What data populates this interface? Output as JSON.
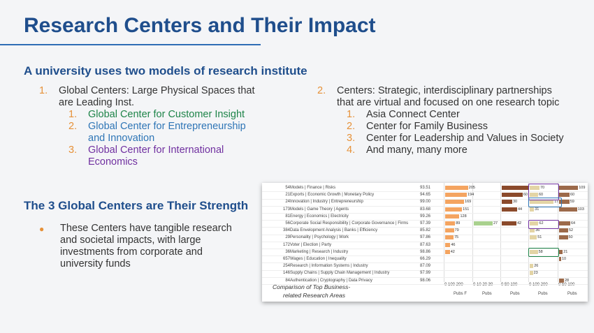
{
  "title": "Research Centers and Their Impact",
  "section1": {
    "heading": "A university uses two models of research institute",
    "left_item": {
      "num": "1.",
      "text_line1": "Global Centers: Large Physical Spaces that",
      "text_line2": "are Leading Inst.",
      "sub": [
        {
          "num": "1.",
          "line1": "Global Center for Customer Insight",
          "line2": ""
        },
        {
          "num": "2.",
          "line1": "Global Center for Entrepreneurship",
          "line2": "and Innovation"
        },
        {
          "num": "3.",
          "line1": "Global Center for International",
          "line2": "Economics"
        }
      ]
    },
    "right_item": {
      "num": "2.",
      "text_line1": "Centers: Strategic, interdisciplinary partnerships",
      "text_line2": "that are virtual and focused on one research topic",
      "sub": [
        {
          "num": "1.",
          "text": "Asia Connect Center"
        },
        {
          "num": "2.",
          "text": "Center for Family Business"
        },
        {
          "num": "3.",
          "text": "Center for Leadership and Values in Society"
        },
        {
          "num": "4.",
          "text": "And many, many more"
        }
      ]
    }
  },
  "section2": {
    "heading": "The 3 Global Centers are Their Strength",
    "bullet_line1": "These Centers have tangible research",
    "bullet_line2": "and societal impacts, with large",
    "bullet_line3": "investments from corporate and",
    "bullet_line4": "university funds"
  },
  "table": {
    "caption_line1": "Comparison of Top Business-",
    "caption_line2": "related Research Areas",
    "axis_labels": [
      "0  100  200",
      "0  10  20  30",
      "0    50   100",
      "0   100  200",
      "0    50   100"
    ],
    "pubs_labels": [
      "Pubs F",
      "Pubs",
      "Pubs",
      "Pubs",
      "Pubs"
    ],
    "colors": {
      "c1": "#f4a460",
      "c2": "#a9d18e",
      "c3": "#8b4a2b",
      "c4": "#e3d4a5",
      "c5": "#9c6a4a",
      "purple": "#7030a0",
      "blue": "#2e75b6",
      "green": "#1e8449"
    },
    "rows": [
      {
        "id": "54",
        "topic": "Models | Finance | Risks",
        "score": "93.51",
        "v1": 205,
        "v2": null,
        "v3": 77,
        "v4": 70,
        "v5": 109
      },
      {
        "id": "21",
        "topic": "Exports | Economic Growth | Monetary Policy",
        "score": "94.65",
        "v1": 194,
        "v2": null,
        "v3": 60,
        "v4": 60,
        "v5": 60
      },
      {
        "id": "24",
        "topic": "Innovation | Industry | Entrepreneurship",
        "score": "99.00",
        "v1": 169,
        "v2": null,
        "v3": 30,
        "v4": 171,
        "v5": 59
      },
      {
        "id": "173",
        "topic": "Models | Game Theory | Agents",
        "score": "83.68",
        "v1": 151,
        "v2": null,
        "v3": 44,
        "v4": 31,
        "v5": 103
      },
      {
        "id": "81",
        "topic": "Energy | Economics | Electricity",
        "score": "99.26",
        "v1": 128,
        "v2": null,
        "v3": null,
        "v4": null,
        "v5": null
      },
      {
        "id": "56",
        "topic": "Corporate Social Responsibility | Corporate Governance | Firms",
        "score": "97.39",
        "v1": 89,
        "v2": 27,
        "v3": 42,
        "v4": 62,
        "v5": 64
      },
      {
        "id": "384",
        "topic": "Data Envelopment Analysis | Banks | Efficiency",
        "score": "85.82",
        "v1": 79,
        "v2": null,
        "v3": null,
        "v4": 36,
        "v5": 52
      },
      {
        "id": "29",
        "topic": "Personality | Psychology | Work",
        "score": "97.86",
        "v1": 75,
        "v2": null,
        "v3": null,
        "v4": 51,
        "v5": 50
      },
      {
        "id": "172",
        "topic": "Voter | Election | Party",
        "score": "87.63",
        "v1": 46,
        "v2": null,
        "v3": null,
        "v4": null,
        "v5": null
      },
      {
        "id": "36",
        "topic": "Marketing | Research | Industry",
        "score": "98.86",
        "v1": 42,
        "v2": null,
        "v3": null,
        "v4": 58,
        "v5": 21
      },
      {
        "id": "657",
        "topic": "Wages | Education | Inequality",
        "score": "66.29",
        "v1": null,
        "v2": null,
        "v3": null,
        "v4": null,
        "v5": 10
      },
      {
        "id": "254",
        "topic": "Research | Information Systems | Industry",
        "score": "87.09",
        "v1": null,
        "v2": null,
        "v3": null,
        "v4": 26,
        "v5": null
      },
      {
        "id": "146",
        "topic": "Supply Chains | Supply Chain Management | Industry",
        "score": "97.99",
        "v1": null,
        "v2": null,
        "v3": null,
        "v4": 23,
        "v5": null
      },
      {
        "id": "84",
        "topic": "Authentication | Cryptography | Data Privacy",
        "score": "98.06",
        "v1": null,
        "v2": null,
        "v3": null,
        "v4": null,
        "v5": 28
      }
    ]
  }
}
